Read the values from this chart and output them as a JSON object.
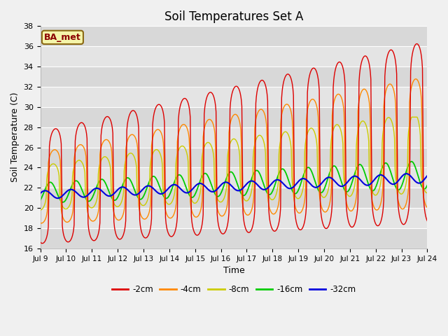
{
  "title": "Soil Temperatures Set A",
  "xlabel": "Time",
  "ylabel": "Soil Temperature (C)",
  "ylim": [
    16,
    38
  ],
  "annotation": "BA_met",
  "legend": [
    "-2cm",
    "-4cm",
    "-8cm",
    "-16cm",
    "-32cm"
  ],
  "colors": {
    "-2cm": "#dd0000",
    "-4cm": "#ff8800",
    "-8cm": "#cccc00",
    "-16cm": "#00cc00",
    "-32cm": "#0000dd"
  },
  "tick_labels": [
    "Jul 9",
    "Jul 10",
    "Jul 11",
    "Jul 12",
    "Jul 13",
    "Jul 14",
    "Jul 15",
    "Jul 16",
    "Jul 17",
    "Jul 18",
    "Jul 19",
    "Jul 20",
    "Jul 21",
    "Jul 22",
    "Jul 23",
    "Jul 24"
  ],
  "fig_bg": "#f0f0f0",
  "plot_bg": "#e0e0e0"
}
